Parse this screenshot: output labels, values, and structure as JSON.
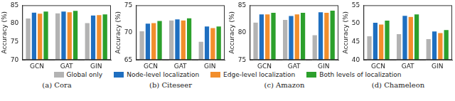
{
  "chart_data": [
    {
      "type": "bar",
      "title": "(a) Cora",
      "y_label": "Accuracy (%)",
      "legend": "bottom",
      "grid": false,
      "categories": [
        "GCN",
        "GAT",
        "GIN"
      ],
      "ylim": [
        70,
        85
      ],
      "yticks": [
        70,
        75,
        80,
        85
      ],
      "series": [
        {
          "name": "Global only",
          "color": "#b3b3b3",
          "values": [
            81.5,
            82.9,
            80.2
          ]
        },
        {
          "name": "Node-level localization",
          "color": "#1f6fc0",
          "values": [
            83.1,
            83.4,
            82.3
          ]
        },
        {
          "name": "Edge-level localization",
          "color": "#f28e2b",
          "values": [
            82.8,
            83.2,
            82.4
          ]
        },
        {
          "name": "Both levels of localization",
          "color": "#2ca02c",
          "values": [
            83.4,
            83.6,
            82.6
          ]
        }
      ]
    },
    {
      "type": "bar",
      "title": "(b) Citeseer",
      "y_label": "Accuracy (%)",
      "grid": false,
      "categories": [
        "GCN",
        "GAT",
        "GIN"
      ],
      "ylim": [
        65,
        75
      ],
      "yticks": [
        65,
        70,
        75
      ],
      "series": [
        {
          "name": "Global only",
          "color": "#b3b3b3",
          "values": [
            70.3,
            72.3,
            68.4
          ]
        },
        {
          "name": "Node-level localization",
          "color": "#1f6fc0",
          "values": [
            71.7,
            72.5,
            71.2
          ]
        },
        {
          "name": "Edge-level localization",
          "color": "#f28e2b",
          "values": [
            71.8,
            72.3,
            70.9
          ]
        },
        {
          "name": "Both levels of localization",
          "color": "#2ca02c",
          "values": [
            72.2,
            72.7,
            71.2
          ]
        }
      ]
    },
    {
      "type": "bar",
      "title": "(c) Amazon",
      "y_label": "Accuracy (%)",
      "grid": false,
      "categories": [
        "GCN",
        "GAT",
        "GIN"
      ],
      "ylim": [
        75,
        85
      ],
      "yticks": [
        75,
        80,
        85
      ],
      "series": [
        {
          "name": "Global only",
          "color": "#b3b3b3",
          "values": [
            81.9,
            82.4,
            79.6
          ]
        },
        {
          "name": "Node-level localization",
          "color": "#1f6fc0",
          "values": [
            83.4,
            83.1,
            83.8
          ]
        },
        {
          "name": "Edge-level localization",
          "color": "#f28e2b",
          "values": [
            83.4,
            83.4,
            83.7
          ]
        },
        {
          "name": "Both levels of localization",
          "color": "#2ca02c",
          "values": [
            83.7,
            83.7,
            84.1
          ]
        }
      ]
    },
    {
      "type": "bar",
      "title": "(d) Chameleon",
      "y_label": "Accuracy (%)",
      "grid": false,
      "categories": [
        "GCN",
        "GAT",
        "GIN"
      ],
      "ylim": [
        40,
        55
      ],
      "yticks": [
        40,
        45,
        50,
        55
      ],
      "series": [
        {
          "name": "Global only",
          "color": "#b3b3b3",
          "values": [
            46.6,
            47.2,
            45.8
          ]
        },
        {
          "name": "Node-level localization",
          "color": "#1f6fc0",
          "values": [
            50.3,
            52.2,
            47.9
          ]
        },
        {
          "name": "Edge-level localization",
          "color": "#f28e2b",
          "values": [
            49.8,
            51.9,
            47.5
          ]
        },
        {
          "name": "Both levels of localization",
          "color": "#2ca02c",
          "values": [
            50.9,
            52.6,
            48.3
          ]
        }
      ]
    }
  ]
}
